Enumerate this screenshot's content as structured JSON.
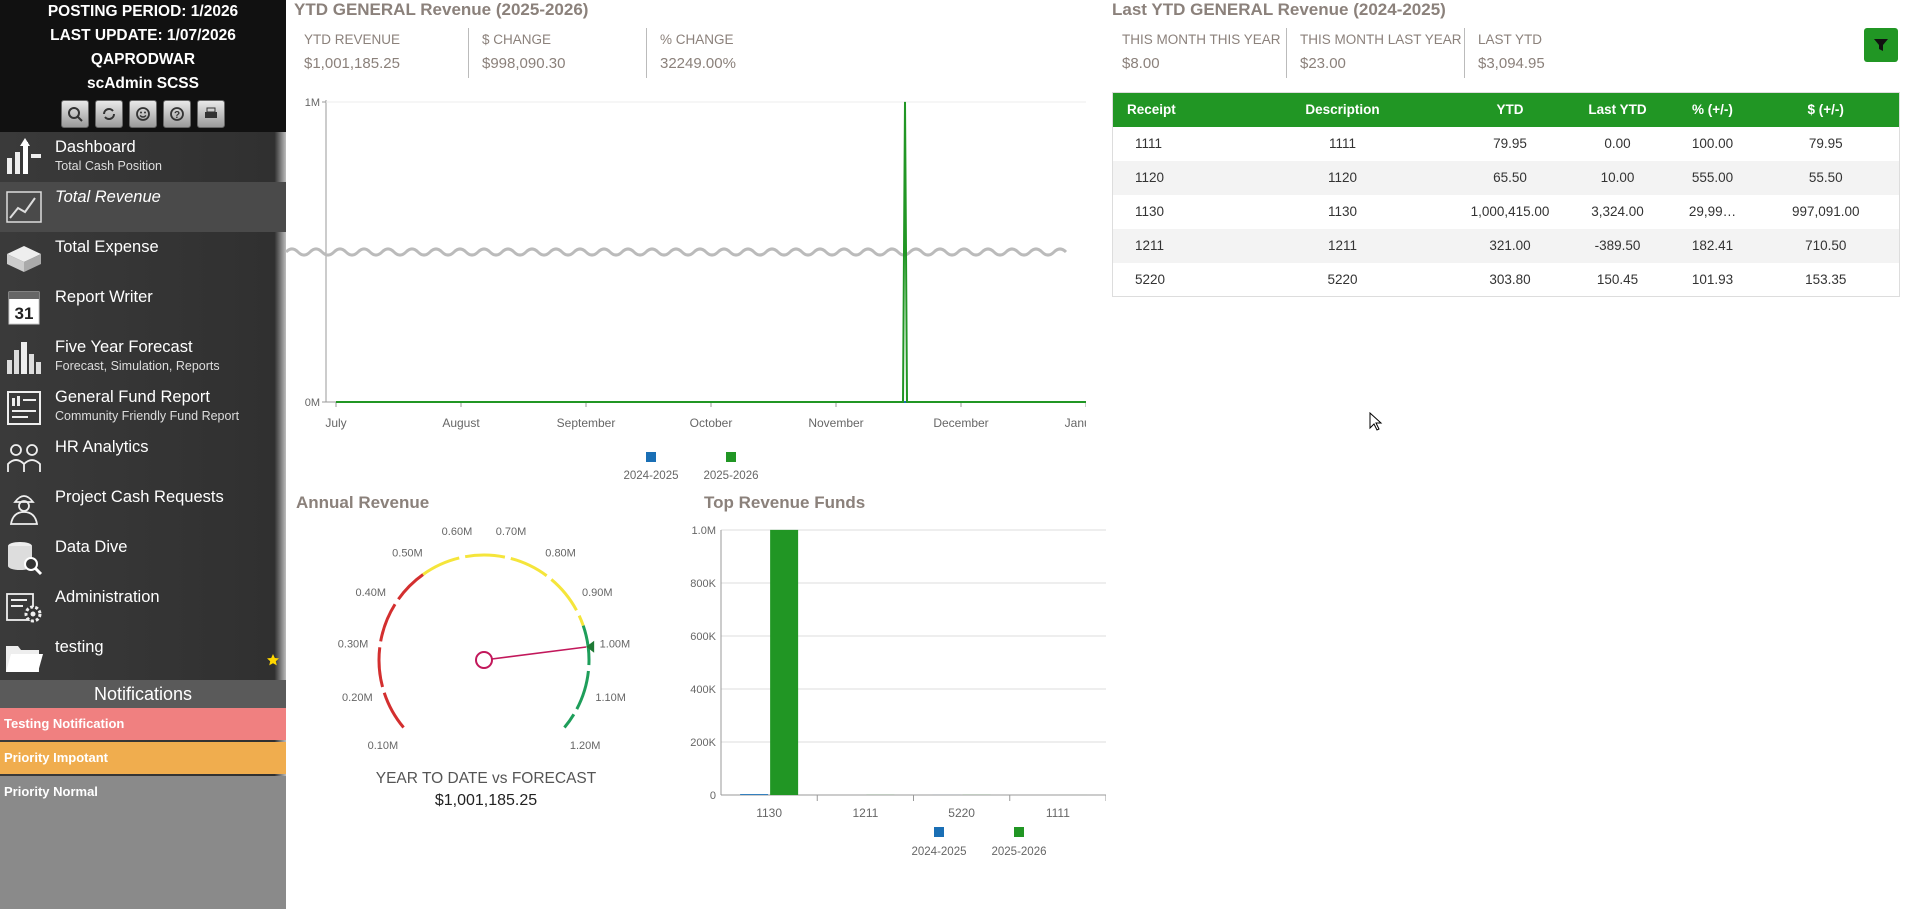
{
  "header": {
    "posting_period": "POSTING PERIOD: 1/2026",
    "last_update": "LAST UPDATE: 1/07/2026",
    "database": "QAPRODWAR",
    "user": "scAdmin SCSS"
  },
  "toolbar": {
    "icons": [
      "search-icon",
      "refresh-icon",
      "smiley-icon",
      "help-icon",
      "print-icon"
    ]
  },
  "nav": [
    {
      "label": "Dashboard",
      "sub": "Total Cash Position",
      "icon": "dashboard-icon"
    },
    {
      "label": "Total Revenue",
      "sub": "",
      "icon": "revenue-icon",
      "active": true
    },
    {
      "label": "Total Expense",
      "sub": "",
      "icon": "expense-icon"
    },
    {
      "label": "Report Writer",
      "sub": "",
      "icon": "calendar-icon"
    },
    {
      "label": "Five Year Forecast",
      "sub": "Forecast, Simulation, Reports",
      "icon": "forecast-icon"
    },
    {
      "label": "General Fund Report",
      "sub": "Community Friendly Fund Report",
      "icon": "report-icon"
    },
    {
      "label": "HR Analytics",
      "sub": "",
      "icon": "people-icon"
    },
    {
      "label": "Project Cash Requests",
      "sub": "",
      "icon": "worker-icon"
    },
    {
      "label": "Data Dive",
      "sub": "",
      "icon": "database-icon"
    },
    {
      "label": "Administration",
      "sub": "",
      "icon": "admin-icon"
    },
    {
      "label": "testing",
      "sub": "",
      "icon": "folder-icon"
    }
  ],
  "notifications": {
    "title": "Notifications",
    "items": [
      {
        "label": "Testing Notification",
        "color": "#f08080"
      },
      {
        "label": "Priority Impotant",
        "color": "#f0ad4e"
      },
      {
        "label": "Priority Normal",
        "color": "#8a8a8a"
      }
    ]
  },
  "ytd": {
    "title": "YTD GENERAL Revenue (2025-2026)",
    "kpis": [
      {
        "label": "YTD REVENUE",
        "value": "$1,001,185.25"
      },
      {
        "label": "$ CHANGE",
        "value": "$998,090.30"
      },
      {
        "label": "% CHANGE",
        "value": "32249.00%"
      }
    ]
  },
  "last": {
    "title": "Last YTD GENERAL Revenue (2024-2025)",
    "kpis": [
      {
        "label": "THIS MONTH THIS YEAR",
        "value": "$8.00"
      },
      {
        "label": "THIS MONTH LAST YEAR",
        "value": "$23.00"
      },
      {
        "label": "LAST YTD",
        "value": "$3,094.95"
      }
    ]
  },
  "table": {
    "columns": [
      "Receipt",
      "Description",
      "YTD",
      "Last YTD",
      "% (+/-)",
      "$ (+/-)"
    ],
    "rows": [
      [
        "1111",
        "1111",
        "79.95",
        "0.00",
        "100.00",
        "79.95"
      ],
      [
        "1120",
        "1120",
        "65.50",
        "10.00",
        "555.00",
        "55.50"
      ],
      [
        "1130",
        "1130",
        "1,000,415.00",
        "3,324.00",
        "29,99…",
        "997,091.00"
      ],
      [
        "1211",
        "1211",
        "321.00",
        "-389.50",
        "182.41",
        "710.50"
      ],
      [
        "5220",
        "5220",
        "303.80",
        "150.45",
        "101.93",
        "153.35"
      ]
    ]
  },
  "legend": [
    "2024-2025",
    "2025-2026"
  ],
  "colors": {
    "s2024": "#1a6fb5",
    "s2025": "#219624",
    "accent": "#219624"
  },
  "chart_data": [
    {
      "type": "line",
      "title": "YTD GENERAL Revenue (2025-2026)",
      "x": [
        "July",
        "August",
        "September",
        "October",
        "November",
        "December",
        "January"
      ],
      "y_ticks": [
        "0M",
        "1M"
      ],
      "ylim": [
        0,
        1000000
      ],
      "series": [
        {
          "name": "2024-2025",
          "values": [
            0,
            0,
            0,
            0,
            0,
            0,
            0
          ]
        },
        {
          "name": "2025-2026",
          "values": [
            0,
            0,
            0,
            0,
            0,
            1000415,
            0
          ]
        }
      ]
    },
    {
      "type": "gauge",
      "title": "Annual Revenue",
      "ticks": [
        "0.10M",
        "0.20M",
        "0.30M",
        "0.40M",
        "0.50M",
        "0.60M",
        "0.70M",
        "0.80M",
        "0.90M",
        "1.00M",
        "1.10M",
        "1.20M"
      ],
      "min": 0.1,
      "max": 1.2,
      "value": 1.0,
      "marker": 1.0,
      "caption": "YEAR TO DATE vs FORECAST",
      "caption_value": "$1,001,185.25"
    },
    {
      "type": "bar",
      "title": "Top Revenue Funds",
      "categories": [
        "1130",
        "1211",
        "5220",
        "1111"
      ],
      "y_ticks": [
        "0",
        "200K",
        "400K",
        "600K",
        "800K",
        "1.0M"
      ],
      "ylim": [
        0,
        1000000
      ],
      "series": [
        {
          "name": "2024-2025",
          "values": [
            3324,
            -389.5,
            150.45,
            0
          ]
        },
        {
          "name": "2025-2026",
          "values": [
            1000415,
            321,
            303.8,
            79.95
          ]
        }
      ]
    }
  ]
}
